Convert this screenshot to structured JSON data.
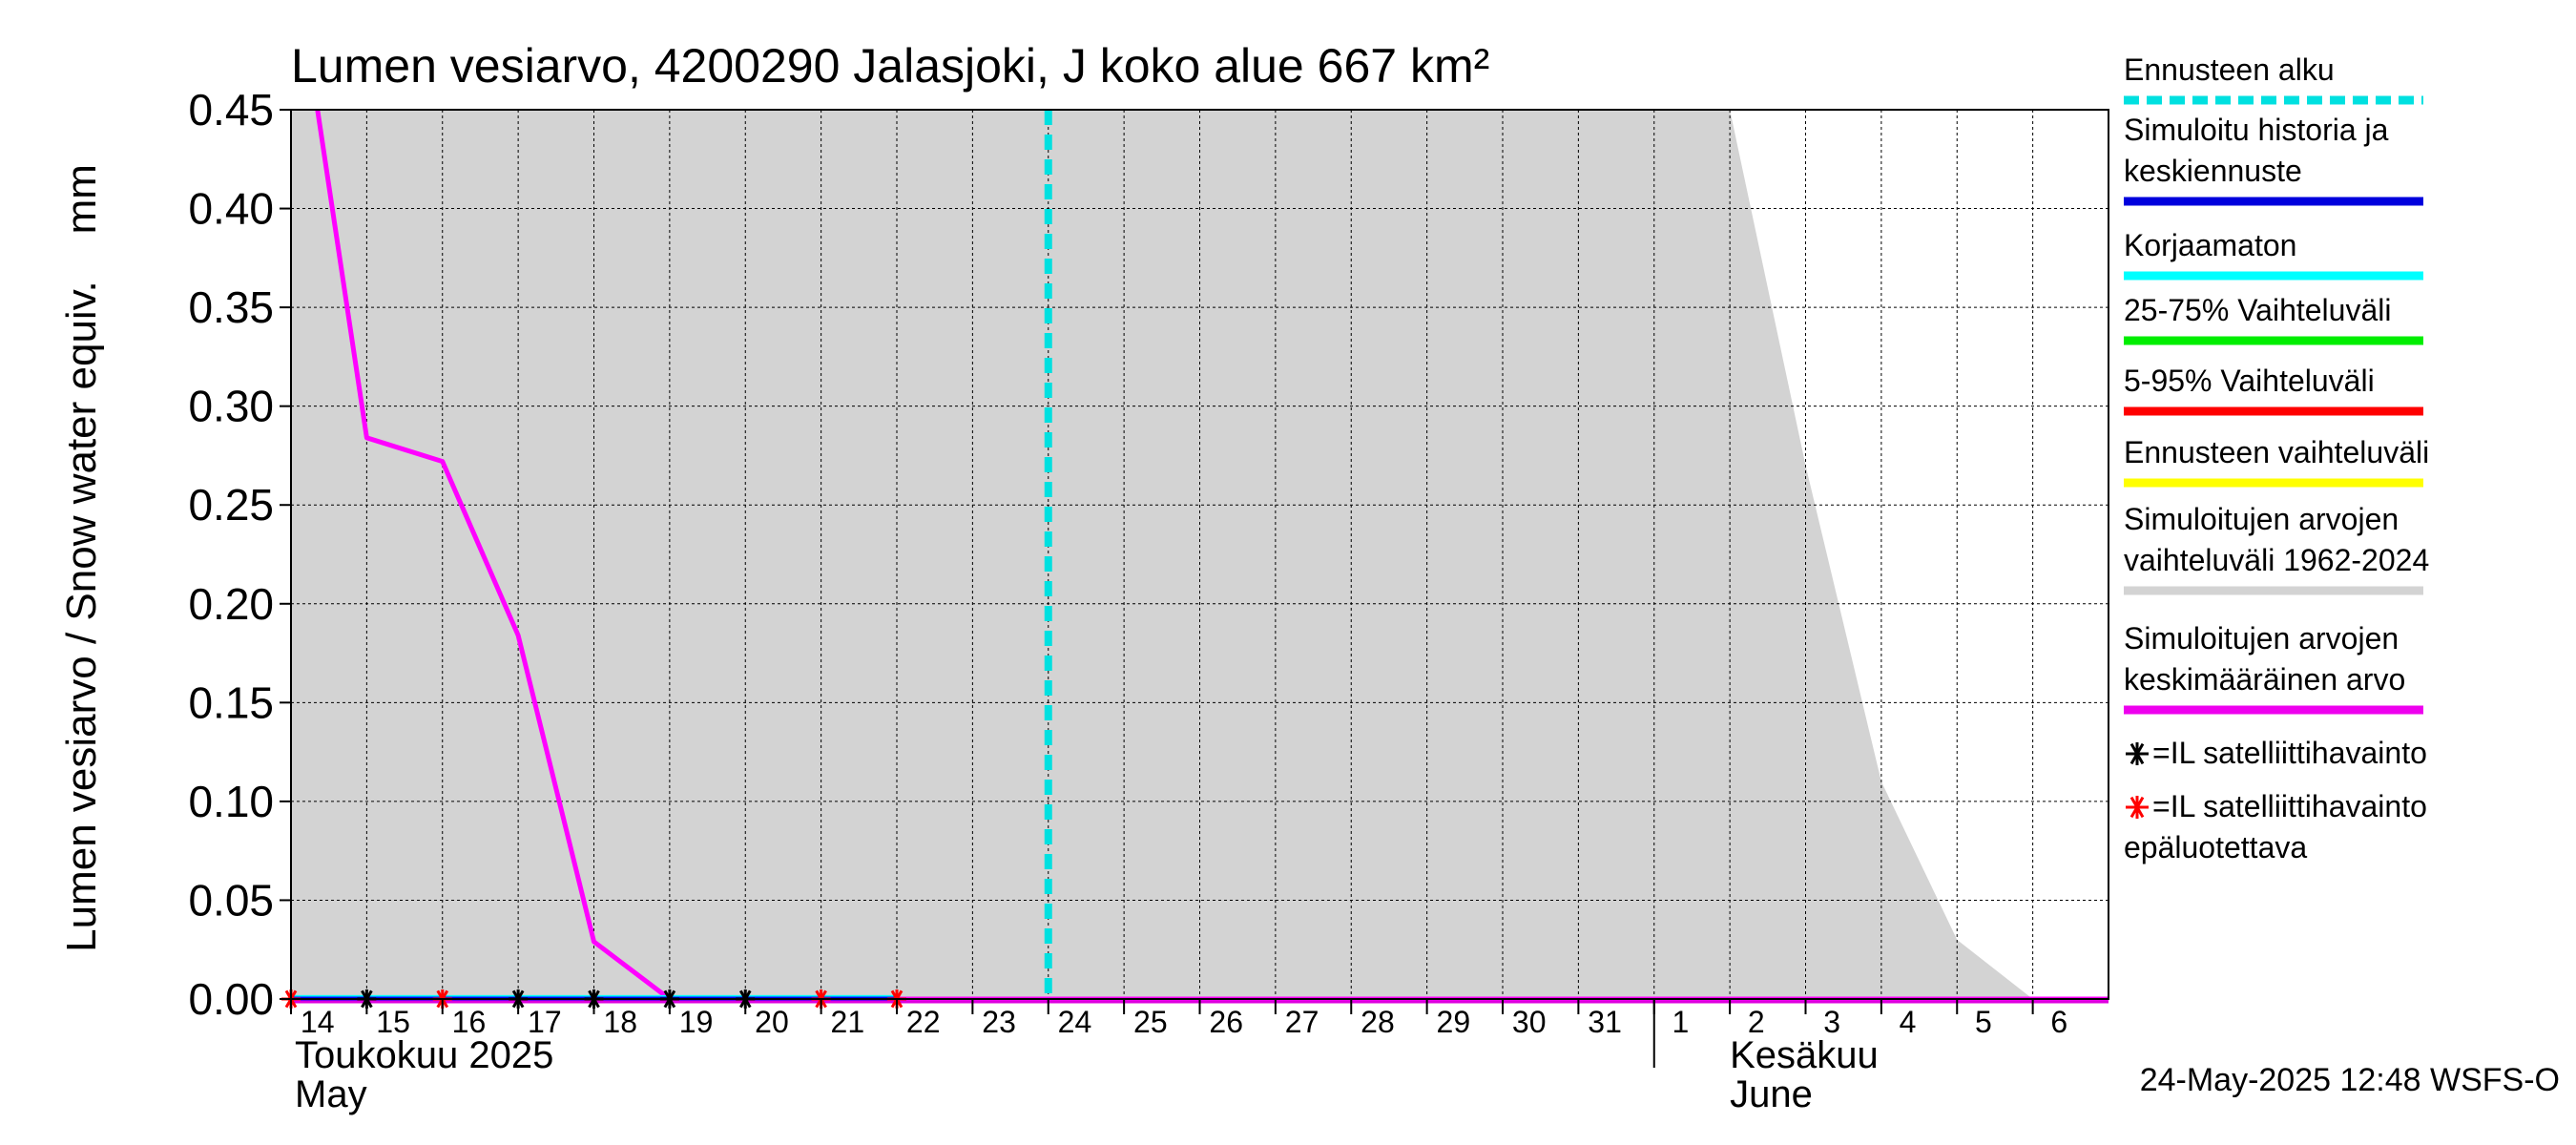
{
  "chart_data": {
    "type": "line",
    "title": "Lumen vesiarvo, 4200290 Jalasjoki, J koko alue 667 km²",
    "ylabel": "Lumen vesiarvo / Snow water equiv.    mm",
    "ylim": [
      0,
      0.45
    ],
    "yticks": [
      "0.00",
      "0.05",
      "0.10",
      "0.15",
      "0.20",
      "0.25",
      "0.30",
      "0.35",
      "0.40",
      "0.45"
    ],
    "ytick_values": [
      0,
      0.05,
      0.1,
      0.15,
      0.2,
      0.25,
      0.3,
      0.35,
      0.4,
      0.45
    ],
    "x_days": [
      "14",
      "15",
      "16",
      "17",
      "18",
      "19",
      "20",
      "21",
      "22",
      "23",
      "24",
      "25",
      "26",
      "27",
      "28",
      "29",
      "30",
      "31",
      "1",
      "2",
      "3",
      "4",
      "5",
      "6"
    ],
    "x_day_index_range": [
      0,
      24
    ],
    "month_labels": [
      {
        "line1": "Toukokuu  2025",
        "line2": "May",
        "day_index": 0
      },
      {
        "line1": "Kesäkuu",
        "line2": "June",
        "day_index": 19
      }
    ],
    "month_boundary_day_index": 18,
    "forecast_start_day_index": 10,
    "historical_range_upper": {
      "day_index": [
        0,
        19,
        20,
        21,
        22,
        23,
        24
      ],
      "values": [
        0.45,
        0.45,
        0.27,
        0.11,
        0.03,
        0.0,
        0.0
      ]
    },
    "series": [
      {
        "name": "Simuloitujen arvojen keskimääräinen arvo",
        "color": "#ff00ff",
        "day_index": [
          0.35,
          1,
          2,
          3,
          4,
          5,
          6,
          24
        ],
        "values": [
          0.45,
          0.284,
          0.272,
          0.184,
          0.029,
          0.0,
          0.0,
          0.0
        ]
      },
      {
        "name": "Korjaamaton",
        "color": "#00ffff",
        "day_index": [
          0,
          8
        ],
        "values": [
          0.001,
          0.001
        ]
      },
      {
        "name": "Simuloitu historia ja keskiennuste",
        "color": "#0000ff",
        "day_index": [
          0,
          8
        ],
        "values": [
          0.0,
          0.0
        ]
      }
    ],
    "satellite_observations": {
      "reliable_day_index": [
        1,
        3,
        4,
        5,
        6
      ],
      "unreliable_day_index": [
        0,
        2,
        7,
        8
      ],
      "values": [
        0,
        0,
        0,
        0,
        0
      ]
    },
    "legend": [
      {
        "label": "Ennusteen alku",
        "color": "#00e0e0",
        "style": "dashed"
      },
      {
        "label": "Simuloitu historia ja\nkeskiennuste",
        "color": "#0000dd",
        "style": "solid"
      },
      {
        "label": "Korjaamaton",
        "color": "#00ffff",
        "style": "solid"
      },
      {
        "label": "25-75% Vaihteluväli",
        "color": "#00ee00",
        "style": "solid"
      },
      {
        "label": "5-95% Vaihteluväli",
        "color": "#ff0000",
        "style": "solid"
      },
      {
        "label": "Ennusteen vaihteluväli",
        "color": "#ffff00",
        "style": "solid"
      },
      {
        "label": "Simuloitujen arvojen\nvaihteluväli 1962-2024",
        "color": "#d3d3d3",
        "style": "solid"
      },
      {
        "label": "Simuloitujen arvojen\nkeskimääräinen arvo",
        "color": "#ee00ee",
        "style": "solid"
      },
      {
        "label": "=IL satelliittihavainto",
        "color": "#000000",
        "style": "star"
      },
      {
        "label": "=IL satelliittihavainto\nepäluotettava",
        "color": "#ff0000",
        "style": "star"
      }
    ],
    "footer": "24-May-2025 12:48 WSFS-O"
  }
}
